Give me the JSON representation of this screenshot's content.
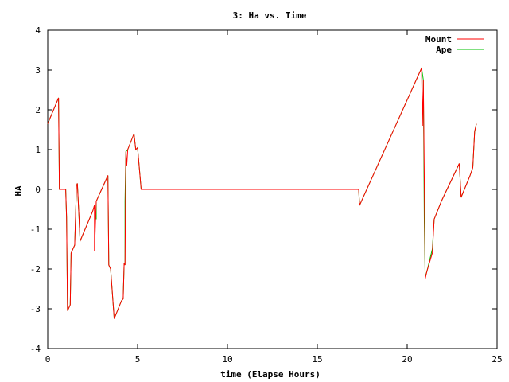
{
  "chart_data": {
    "type": "line",
    "title": "3: Ha vs. Time",
    "xlabel": "time (Elapse Hours)",
    "ylabel": "HA",
    "xlim": [
      0,
      25
    ],
    "ylim": [
      -4,
      4
    ],
    "x_ticks": [
      0,
      5,
      10,
      15,
      20,
      25
    ],
    "y_ticks": [
      -4,
      -3,
      -2,
      -1,
      0,
      1,
      2,
      3,
      4
    ],
    "x_tick_labels": [
      "0",
      "5",
      "10",
      "15",
      "20",
      "25"
    ],
    "y_tick_labels": [
      "-4",
      "-3",
      "-2",
      "-1",
      "0",
      "1",
      "2",
      "3",
      "4"
    ],
    "grid": false,
    "legend_position": "top-right",
    "series": [
      {
        "name": "Mount",
        "color": "#ff0000",
        "points": [
          [
            0.0,
            1.65
          ],
          [
            0.6,
            2.3
          ],
          [
            0.65,
            0.0
          ],
          [
            1.0,
            0.0
          ],
          [
            1.05,
            -0.7
          ],
          [
            1.1,
            -3.05
          ],
          [
            1.25,
            -2.9
          ],
          [
            1.3,
            -1.6
          ],
          [
            1.5,
            -1.4
          ],
          [
            1.6,
            0.1
          ],
          [
            1.65,
            0.15
          ],
          [
            1.75,
            -0.8
          ],
          [
            1.8,
            -1.3
          ],
          [
            2.5,
            -0.55
          ],
          [
            2.6,
            -0.4
          ],
          [
            2.6,
            -1.55
          ],
          [
            2.7,
            -0.3
          ],
          [
            3.35,
            0.35
          ],
          [
            3.4,
            -1.9
          ],
          [
            3.5,
            -2.0
          ],
          [
            3.7,
            -3.25
          ],
          [
            4.1,
            -2.8
          ],
          [
            4.2,
            -2.75
          ],
          [
            4.25,
            -1.85
          ],
          [
            4.3,
            -1.9
          ],
          [
            4.35,
            0.95
          ],
          [
            4.4,
            0.6
          ],
          [
            4.45,
            1.0
          ],
          [
            4.8,
            1.4
          ],
          [
            4.9,
            1.0
          ],
          [
            5.0,
            1.05
          ],
          [
            5.2,
            0.0
          ],
          [
            17.3,
            0.0
          ],
          [
            17.35,
            -0.4
          ],
          [
            20.8,
            3.05
          ],
          [
            20.85,
            1.6
          ],
          [
            20.9,
            2.75
          ],
          [
            20.95,
            0.3
          ],
          [
            21.0,
            -2.25
          ],
          [
            21.1,
            -2.05
          ],
          [
            21.4,
            -1.6
          ],
          [
            21.5,
            -0.75
          ],
          [
            21.9,
            -0.3
          ],
          [
            22.9,
            0.65
          ],
          [
            23.0,
            -0.2
          ],
          [
            23.5,
            0.35
          ],
          [
            23.65,
            0.55
          ],
          [
            23.75,
            1.45
          ],
          [
            23.85,
            1.65
          ]
        ]
      },
      {
        "name": "Ape",
        "color": "#00c000",
        "points": [
          [
            0.0,
            1.65
          ],
          [
            0.6,
            2.3
          ],
          [
            0.65,
            0.0
          ],
          [
            1.0,
            0.0
          ],
          [
            1.05,
            -0.7
          ],
          [
            1.1,
            -3.05
          ],
          [
            1.25,
            -2.9
          ],
          [
            1.3,
            -1.6
          ],
          [
            1.5,
            -1.4
          ],
          [
            1.6,
            0.1
          ],
          [
            1.65,
            0.15
          ],
          [
            1.75,
            -0.8
          ],
          [
            1.8,
            -1.3
          ],
          [
            2.5,
            -0.55
          ],
          [
            2.6,
            -0.4
          ],
          [
            2.7,
            -0.75
          ],
          [
            2.7,
            -0.3
          ],
          [
            3.35,
            0.35
          ],
          [
            3.4,
            -1.9
          ],
          [
            3.5,
            -2.0
          ],
          [
            3.7,
            -3.25
          ],
          [
            4.1,
            -2.8
          ],
          [
            4.2,
            -2.75
          ],
          [
            4.25,
            -1.85
          ],
          [
            4.3,
            -1.9
          ],
          [
            4.3,
            -0.3
          ],
          [
            4.35,
            0.95
          ],
          [
            4.45,
            1.0
          ],
          [
            4.8,
            1.4
          ],
          [
            4.9,
            1.0
          ],
          [
            5.0,
            1.05
          ],
          [
            5.2,
            0.0
          ],
          [
            17.3,
            0.0
          ],
          [
            17.35,
            -0.4
          ],
          [
            20.8,
            3.05
          ],
          [
            20.9,
            2.75
          ],
          [
            20.95,
            -0.8
          ],
          [
            21.0,
            -2.2
          ],
          [
            21.1,
            -2.05
          ],
          [
            21.4,
            -1.5
          ],
          [
            21.5,
            -0.75
          ],
          [
            21.9,
            -0.3
          ],
          [
            22.9,
            0.65
          ],
          [
            23.0,
            -0.2
          ],
          [
            23.5,
            0.35
          ],
          [
            23.65,
            0.55
          ],
          [
            23.75,
            1.45
          ],
          [
            23.85,
            1.65
          ]
        ]
      }
    ]
  }
}
